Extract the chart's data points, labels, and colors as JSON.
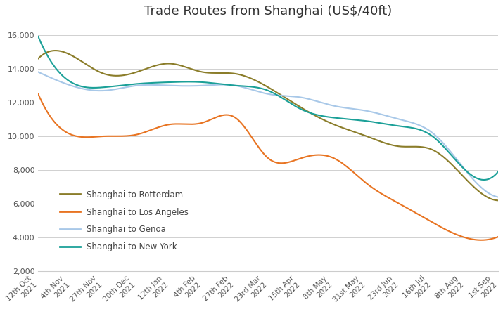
{
  "title": "Trade Routes from Shanghai (US$/40ft)",
  "x_labels": [
    "12th Oct\n2021",
    "4th Nov\n2021",
    "27th Nov\n2021",
    "20th Dec\n2021",
    "12th Jan\n2022",
    "4th Feb\n2022",
    "27th Feb\n2022",
    "23rd Mar\n2022",
    "15th Apr\n2022",
    "8th May\n2022",
    "31st May\n2022",
    "23rd Jun\n2022",
    "16th Jul\n2022",
    "8th Aug\n2022",
    "1st Sep\n2022"
  ],
  "ylim": [
    2000,
    16500
  ],
  "yticks": [
    2000,
    4000,
    6000,
    8000,
    10000,
    12000,
    14000,
    16000
  ],
  "series": {
    "Shanghai to Rotterdam": {
      "color": "#8B7D2A",
      "data": [
        14600,
        14800,
        13700,
        13800,
        14300,
        13800,
        13700,
        12900,
        11700,
        10700,
        10000,
        9400,
        9200,
        7500,
        6200
      ]
    },
    "Shanghai to Los Angeles": {
      "color": "#E87422",
      "data": [
        12500,
        10100,
        10000,
        10100,
        10700,
        10800,
        11100,
        8700,
        8700,
        8700,
        7200,
        6000,
        4900,
        4000,
        4050
      ]
    },
    "Shanghai to Genoa": {
      "color": "#A8C8E8",
      "data": [
        13800,
        13000,
        12700,
        13000,
        13000,
        13000,
        13000,
        12500,
        12300,
        11800,
        11500,
        11000,
        10200,
        8000,
        6400
      ]
    },
    "Shanghai to New York": {
      "color": "#1BA098",
      "data": [
        15900,
        13200,
        12900,
        13100,
        13200,
        13200,
        13000,
        12700,
        11600,
        11100,
        10900,
        10600,
        10000,
        8000,
        7900
      ]
    }
  },
  "legend_labels": [
    "Shanghai to Rotterdam",
    "Shanghai to Los Angeles",
    "Shanghai to Genoa",
    "Shanghai to New York"
  ],
  "background_color": "#ffffff",
  "grid_color": "#d0d0d0"
}
